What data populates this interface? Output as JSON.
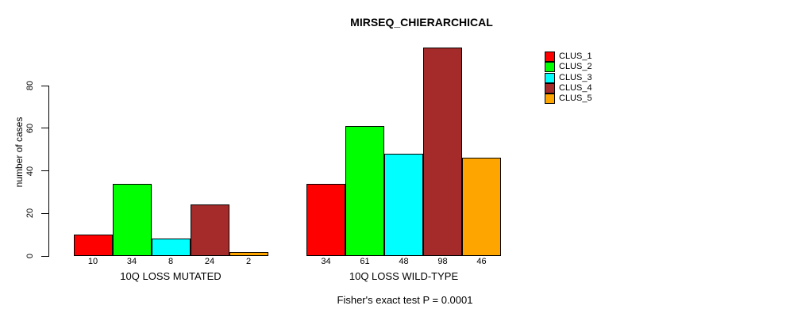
{
  "title": "MIRSEQ_CHIERARCHICAL",
  "annotation": "Fisher's exact test P = 0.0001",
  "colors": {
    "clus_1": "#FF0000",
    "clus_2": "#00FF00",
    "clus_3": "#00FFFF",
    "clus_4": "#A52A2A",
    "clus_5": "#FFA500"
  },
  "chart_data": {
    "type": "bar",
    "title": "MIRSEQ_CHIERARCHICAL",
    "xlabel": "",
    "ylabel": "number of cases",
    "ylim": [
      0,
      100
    ],
    "yticks": [
      0,
      20,
      40,
      60,
      80
    ],
    "grid": false,
    "legend_position": "right",
    "bar_value_labels_shown": true,
    "categories": [
      "10Q LOSS MUTATED",
      "10Q LOSS WILD-TYPE"
    ],
    "series": [
      {
        "name": "CLUS_1",
        "color": "#FF0000",
        "values": [
          10,
          34
        ]
      },
      {
        "name": "CLUS_2",
        "color": "#00FF00",
        "values": [
          34,
          61
        ]
      },
      {
        "name": "CLUS_3",
        "color": "#00FFFF",
        "values": [
          8,
          48
        ]
      },
      {
        "name": "CLUS_4",
        "color": "#A52A2A",
        "values": [
          24,
          98
        ]
      },
      {
        "name": "CLUS_5",
        "color": "#FFA500",
        "values": [
          2,
          46
        ]
      }
    ],
    "annotation": "Fisher's exact test P = 0.0001"
  }
}
